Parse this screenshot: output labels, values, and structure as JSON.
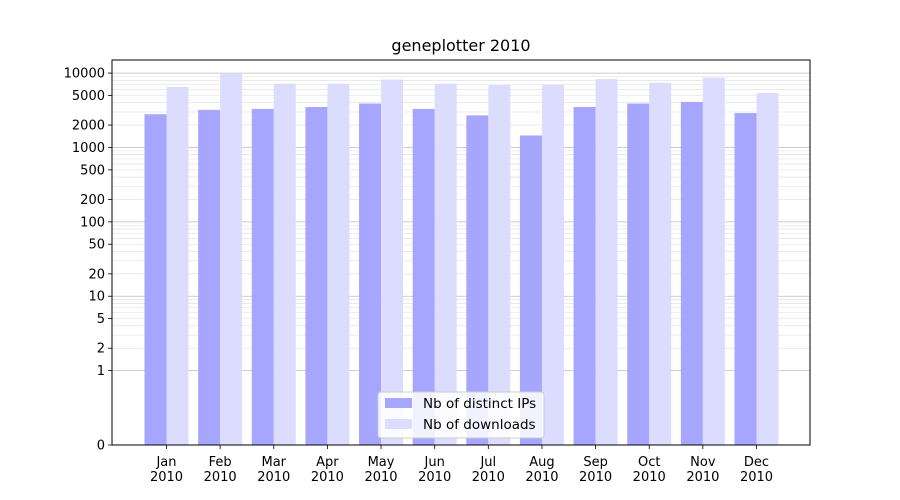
{
  "chart_data": {
    "type": "bar",
    "title": "geneplotter 2010",
    "xlabel": "",
    "ylabel": "",
    "yscale": "symlog",
    "ylim": [
      0,
      15000
    ],
    "categories": [
      [
        "Jan",
        "2010"
      ],
      [
        "Feb",
        "2010"
      ],
      [
        "Mar",
        "2010"
      ],
      [
        "Apr",
        "2010"
      ],
      [
        "May",
        "2010"
      ],
      [
        "Jun",
        "2010"
      ],
      [
        "Jul",
        "2010"
      ],
      [
        "Aug",
        "2010"
      ],
      [
        "Sep",
        "2010"
      ],
      [
        "Oct",
        "2010"
      ],
      [
        "Nov",
        "2010"
      ],
      [
        "Dec",
        "2010"
      ]
    ],
    "yticks": [
      0,
      1,
      2,
      5,
      10,
      20,
      50,
      100,
      200,
      500,
      1000,
      2000,
      5000,
      10000
    ],
    "ytick_labels": [
      "0",
      "1",
      "2",
      "5",
      "10",
      "20",
      "50",
      "100",
      "200",
      "500",
      "1000",
      "2000",
      "5000",
      "10000"
    ],
    "grid": true,
    "legend_position": "bottom-center",
    "series": [
      {
        "name": "Nb of distinct IPs",
        "color": "#a6a6ff",
        "values": [
          2800,
          3200,
          3300,
          3500,
          3900,
          3300,
          2700,
          1450,
          3500,
          3900,
          4100,
          2900
        ]
      },
      {
        "name": "Nb of downloads",
        "color": "#dcdcff",
        "values": [
          6500,
          10000,
          7200,
          7200,
          8200,
          7200,
          6900,
          7000,
          8300,
          7400,
          8700,
          5400
        ]
      }
    ]
  }
}
